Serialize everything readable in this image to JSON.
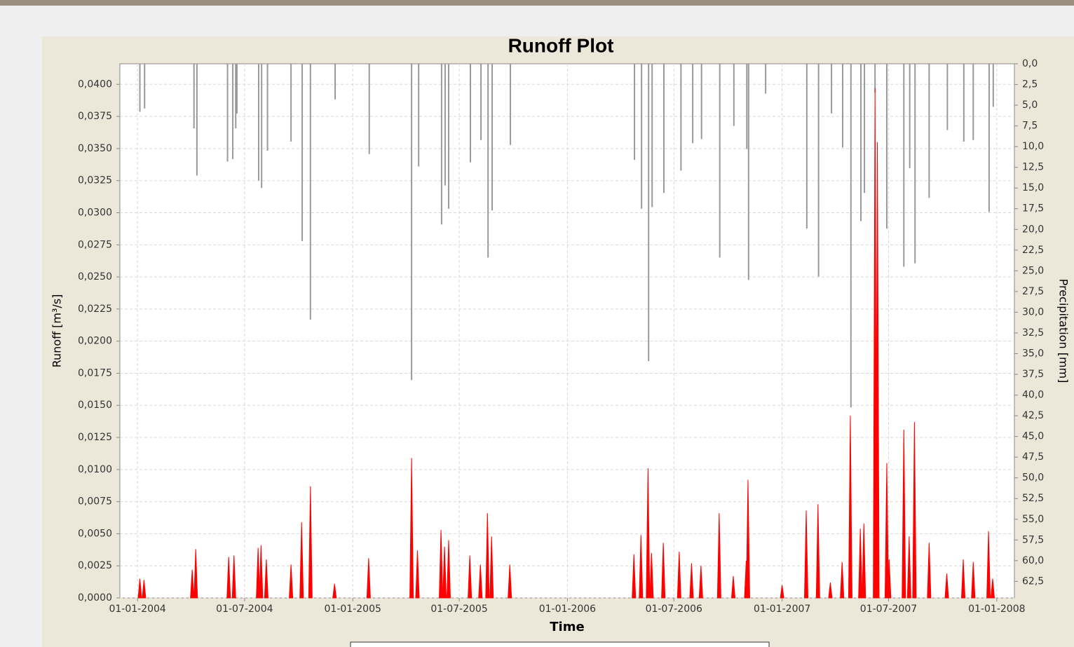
{
  "chart_data": {
    "type": "spike",
    "title": "Runoff Plot",
    "x_label": "Time",
    "y_label": "Runoff [m³/s]",
    "y2_label": "Precipitation [mm]",
    "xlim": [
      "2003-12-02",
      "2008-01-31"
    ],
    "xticks": [
      {
        "value": "2004-01-01",
        "label": "01-01-2004"
      },
      {
        "value": "2004-07-01",
        "label": "01-07-2004"
      },
      {
        "value": "2005-01-01",
        "label": "01-01-2005"
      },
      {
        "value": "2005-07-01",
        "label": "01-07-2005"
      },
      {
        "value": "2006-01-01",
        "label": "01-01-2006"
      },
      {
        "value": "2006-07-01",
        "label": "01-07-2006"
      },
      {
        "value": "2007-01-01",
        "label": "01-01-2007"
      },
      {
        "value": "2007-07-01",
        "label": "01-07-2007"
      },
      {
        "value": "2008-01-01",
        "label": "01-01-2008"
      }
    ],
    "ylim": [
      0,
      0.0416
    ],
    "yticks": [
      {
        "value": 0,
        "label": "0,0000"
      },
      {
        "value": 0.0025,
        "label": "0,0025"
      },
      {
        "value": 0.005,
        "label": "0,0050"
      },
      {
        "value": 0.0075,
        "label": "0,0075"
      },
      {
        "value": 0.01,
        "label": "0,0100"
      },
      {
        "value": 0.0125,
        "label": "0,0125"
      },
      {
        "value": 0.015,
        "label": "0,0150"
      },
      {
        "value": 0.0175,
        "label": "0,0175"
      },
      {
        "value": 0.02,
        "label": "0,0200"
      },
      {
        "value": 0.0225,
        "label": "0,0225"
      },
      {
        "value": 0.025,
        "label": "0,0250"
      },
      {
        "value": 0.0275,
        "label": "0,0275"
      },
      {
        "value": 0.03,
        "label": "0,0300"
      },
      {
        "value": 0.0325,
        "label": "0,0325"
      },
      {
        "value": 0.035,
        "label": "0,0350"
      },
      {
        "value": 0.0375,
        "label": "0,0375"
      },
      {
        "value": 0.04,
        "label": "0,0400"
      }
    ],
    "y2lim": [
      0,
      64.5
    ],
    "y2_inverted": true,
    "y2ticks": [
      {
        "value": 0,
        "label": "0,0"
      },
      {
        "value": 2.5,
        "label": "2,5"
      },
      {
        "value": 5,
        "label": "5,0"
      },
      {
        "value": 7.5,
        "label": "7,5"
      },
      {
        "value": 10,
        "label": "10,0"
      },
      {
        "value": 12.5,
        "label": "12,5"
      },
      {
        "value": 15,
        "label": "15,0"
      },
      {
        "value": 17.5,
        "label": "17,5"
      },
      {
        "value": 20,
        "label": "20,0"
      },
      {
        "value": 22.5,
        "label": "22,5"
      },
      {
        "value": 25,
        "label": "25,0"
      },
      {
        "value": 27.5,
        "label": "27,5"
      },
      {
        "value": 30,
        "label": "30,0"
      },
      {
        "value": 32.5,
        "label": "32,5"
      },
      {
        "value": 35,
        "label": "35,0"
      },
      {
        "value": 37.5,
        "label": "37,5"
      },
      {
        "value": 40,
        "label": "40,0"
      },
      {
        "value": 42.5,
        "label": "42,5"
      },
      {
        "value": 45,
        "label": "45,0"
      },
      {
        "value": 47.5,
        "label": "47,5"
      },
      {
        "value": 50,
        "label": "50,0"
      },
      {
        "value": 52.5,
        "label": "52,5"
      },
      {
        "value": 55,
        "label": "55,0"
      },
      {
        "value": 57.5,
        "label": "57,5"
      },
      {
        "value": 60,
        "label": "60,0"
      },
      {
        "value": 62.5,
        "label": "62,5"
      }
    ],
    "grid": true,
    "series": [
      {
        "type": "spike",
        "color": "#ff0000",
        "x": [
          "2004-01-05",
          "2004-01-12",
          "2004-04-03",
          "2004-04-09",
          "2004-06-04",
          "2004-06-13",
          "2004-07-24",
          "2004-07-29",
          "2004-08-07",
          "2004-09-18",
          "2004-10-06",
          "2004-10-21",
          "2004-12-01",
          "2005-01-28",
          "2005-04-11",
          "2005-04-21",
          "2005-05-31",
          "2005-06-06",
          "2005-06-13",
          "2005-07-19",
          "2005-08-06",
          "2005-08-18",
          "2005-08-25",
          "2005-09-25",
          "2006-04-24",
          "2006-05-06",
          "2006-05-18",
          "2006-05-24",
          "2006-06-13",
          "2006-07-10",
          "2006-07-31",
          "2006-08-16",
          "2006-09-16",
          "2006-10-10",
          "2006-11-01",
          "2006-11-04",
          "2007-01-01",
          "2007-02-11",
          "2007-03-03",
          "2007-03-24",
          "2007-04-13",
          "2007-04-27",
          "2007-05-14",
          "2007-05-20",
          "2007-06-08",
          "2007-06-12",
          "2007-06-28",
          "2007-07-02",
          "2007-07-27",
          "2007-08-05",
          "2007-08-14",
          "2007-09-08",
          "2007-10-08",
          "2007-11-05",
          "2007-11-22",
          "2007-12-18",
          "2007-12-25"
        ],
        "values": [
          0.0015,
          0.0014,
          0.0022,
          0.0038,
          0.0032,
          0.0033,
          0.0039,
          0.0041,
          0.003,
          0.0026,
          0.0059,
          0.0087,
          0.0011,
          0.0031,
          0.0109,
          0.0037,
          0.0053,
          0.004,
          0.0045,
          0.0033,
          0.0026,
          0.0066,
          0.0048,
          0.0026,
          0.0034,
          0.0049,
          0.0101,
          0.0035,
          0.0043,
          0.0036,
          0.0027,
          0.0025,
          0.0066,
          0.0017,
          0.0029,
          0.0092,
          0.001,
          0.0068,
          0.0073,
          0.0012,
          0.0028,
          0.0142,
          0.0054,
          0.0058,
          0.0397,
          0.0355,
          0.0105,
          0.003,
          0.0131,
          0.0048,
          0.0137,
          0.0043,
          0.0019,
          0.003,
          0.0028,
          0.0052,
          0.0015
        ]
      },
      {
        "type": "bar",
        "axis": "y2",
        "color": "#999999",
        "x": [
          "2004-01-05",
          "2004-01-13",
          "2004-04-06",
          "2004-04-11",
          "2004-06-18",
          "2004-06-02",
          "2004-06-11",
          "2004-06-16",
          "2004-07-25",
          "2004-07-30",
          "2004-08-09",
          "2004-09-18",
          "2004-10-07",
          "2004-10-21",
          "2004-12-02",
          "2005-01-29",
          "2005-04-11",
          "2005-04-23",
          "2005-06-01",
          "2005-06-07",
          "2005-06-13",
          "2005-07-20",
          "2005-08-07",
          "2005-08-19",
          "2005-08-26",
          "2005-09-26",
          "2006-04-25",
          "2006-05-07",
          "2006-05-19",
          "2006-05-25",
          "2006-06-14",
          "2006-07-13",
          "2006-08-02",
          "2006-08-17",
          "2006-09-17",
          "2006-10-11",
          "2006-11-02",
          "2006-11-05",
          "2006-12-04",
          "2007-02-12",
          "2007-03-04",
          "2007-03-26",
          "2007-04-14",
          "2007-04-28",
          "2007-05-15",
          "2007-05-21",
          "2007-06-08",
          "2007-06-28",
          "2007-07-27",
          "2007-08-06",
          "2007-08-15",
          "2007-09-08",
          "2007-10-09",
          "2007-11-06",
          "2007-11-22",
          "2007-12-19",
          "2007-12-26"
        ],
        "values": [
          5.8,
          5.4,
          7.8,
          13.5,
          6.0,
          11.8,
          11.5,
          7.8,
          14.1,
          15.0,
          10.5,
          9.4,
          21.4,
          30.9,
          4.3,
          10.9,
          38.2,
          12.4,
          19.4,
          14.7,
          17.5,
          11.9,
          9.2,
          23.4,
          17.7,
          9.8,
          11.6,
          17.5,
          35.9,
          17.3,
          15.6,
          12.9,
          9.6,
          9.1,
          23.4,
          7.5,
          10.3,
          26.1,
          3.6,
          19.9,
          25.7,
          6.0,
          10.1,
          41.5,
          19.0,
          15.6,
          3.5,
          19.9,
          24.5,
          12.6,
          24.1,
          16.2,
          8.0,
          9.4,
          9.2,
          17.9,
          5.2
        ]
      }
    ]
  }
}
